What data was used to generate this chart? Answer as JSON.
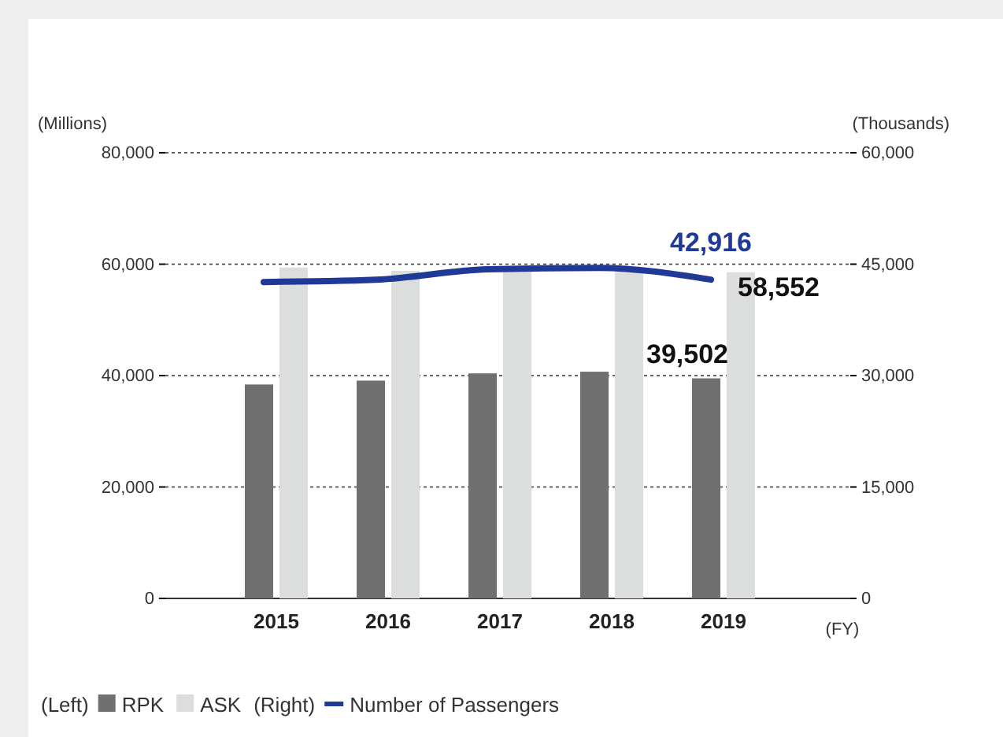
{
  "chart_data": {
    "type": "bar",
    "categories": [
      "2015",
      "2016",
      "2017",
      "2018",
      "2019"
    ],
    "xlabel": "(FY)",
    "ylabel": "(Millions)",
    "y2label": "(Thousands)",
    "series": [
      {
        "name": "RPK",
        "color": "#707070",
        "values": [
          38400,
          39100,
          40400,
          40700,
          39502
        ],
        "value_labels": [
          null,
          null,
          null,
          null,
          "39,502"
        ]
      },
      {
        "name": "ASK",
        "color": "#dcdddd",
        "values": [
          59400,
          58800,
          59500,
          58600,
          58552
        ],
        "value_labels": [
          null,
          null,
          null,
          null,
          "58,552"
        ]
      },
      {
        "name": "Number of Passengers",
        "type": "line",
        "axis": "y2",
        "color": "#1e3a96",
        "values": [
          42600,
          42900,
          44300,
          44500,
          42916
        ],
        "value_labels": [
          null,
          null,
          null,
          null,
          "42,916"
        ]
      }
    ],
    "ylim": [
      0,
      80000
    ],
    "yticks": [
      0,
      {
        "value": 20000,
        "label": "20,000"
      },
      {
        "value": 40000,
        "label": "40,000"
      },
      {
        "value": 60000,
        "label": "60,000"
      },
      {
        "value": 80000,
        "label": "80,000"
      }
    ],
    "y2lim": [
      0,
      60000
    ],
    "y2ticks": [
      0,
      {
        "value": 15000,
        "label": "15,000"
      },
      {
        "value": 30000,
        "label": "30,000"
      },
      {
        "value": 45000,
        "label": "45,000"
      },
      {
        "value": 60000,
        "label": "60,000"
      }
    ],
    "grid": "y",
    "legend": "bottom",
    "annotations": [
      "(Left)",
      "(Right)"
    ]
  }
}
